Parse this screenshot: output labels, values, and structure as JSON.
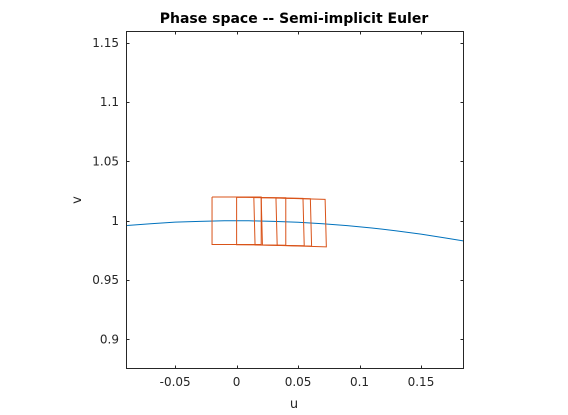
{
  "chart_data": {
    "type": "line",
    "title": "Phase space -- Semi-implicit Euler",
    "xlabel": "u",
    "ylabel": "v",
    "xlim": [
      -0.09,
      0.185
    ],
    "ylim": [
      0.875,
      1.16
    ],
    "xticks": [
      -0.05,
      0,
      0.05,
      0.1,
      0.15
    ],
    "xtick_labels": [
      "-0.05",
      "0",
      "0.05",
      "0.1",
      "0.15"
    ],
    "yticks": [
      0.9,
      0.95,
      1,
      1.05,
      1.1,
      1.15
    ],
    "ytick_labels": [
      "0.9",
      "0.95",
      "1",
      "1.05",
      "1.1",
      "1.15"
    ],
    "grid": false,
    "colors": {
      "curve": "#0072BD",
      "boxes": "#D95319",
      "axes": "#262626"
    },
    "series": [
      {
        "kind": "curve",
        "x": [
          -0.09,
          -0.07,
          -0.05,
          -0.03,
          -0.01,
          0.0,
          0.01,
          0.03,
          0.05,
          0.07,
          0.09,
          0.11,
          0.13,
          0.15,
          0.17,
          0.185
        ],
        "y": [
          0.9959,
          0.9975,
          0.9988,
          0.9995,
          0.99995,
          1.0,
          0.99995,
          0.9995,
          0.9987,
          0.9975,
          0.9959,
          0.9939,
          0.9915,
          0.9887,
          0.9855,
          0.9829
        ]
      },
      {
        "kind": "boxes",
        "polygons": [
          {
            "x": [
              -0.02,
              0.02,
              0.02,
              -0.02,
              -0.02
            ],
            "y": [
              1.02,
              1.02,
              0.98,
              0.98,
              1.02
            ]
          },
          {
            "x": [
              0.0,
              0.04,
              0.04,
              0.0,
              0.0
            ],
            "y": [
              1.0198,
              1.0194,
              0.9794,
              0.9798,
              1.0198
            ]
          },
          {
            "x": [
              0.014,
              0.054,
              0.055,
              0.015,
              0.014
            ],
            "y": [
              1.0196,
              1.0189,
              0.9789,
              0.9796,
              1.0196
            ]
          },
          {
            "x": [
              0.02,
              0.06,
              0.061,
              0.021,
              0.02
            ],
            "y": [
              1.0195,
              1.0186,
              0.9786,
              0.9795,
              1.0195
            ]
          },
          {
            "x": [
              0.032,
              0.072,
              0.073,
              0.033,
              0.032
            ],
            "y": [
              1.0192,
              1.018,
              0.978,
              0.9792,
              1.0192
            ]
          }
        ]
      }
    ]
  }
}
